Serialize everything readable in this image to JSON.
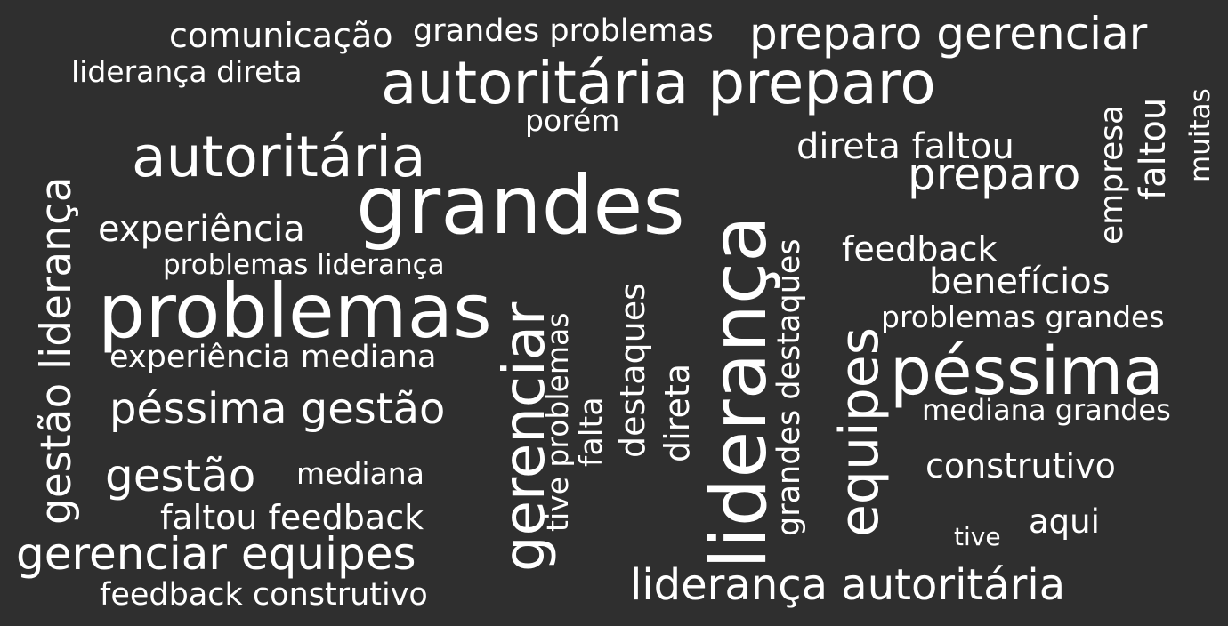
{
  "style": {
    "background": "#2f2f2f",
    "text_color": "#ffffff"
  },
  "words": [
    {
      "text": "comunicação",
      "rotated": false
    },
    {
      "text": "grandes problemas",
      "rotated": false
    },
    {
      "text": "preparo gerenciar",
      "rotated": false
    },
    {
      "text": "liderança direta",
      "rotated": false
    },
    {
      "text": "autoritária preparo",
      "rotated": false
    },
    {
      "text": "porém",
      "rotated": false
    },
    {
      "text": "autoritária",
      "rotated": false
    },
    {
      "text": "grandes",
      "rotated": false
    },
    {
      "text": "direta faltou",
      "rotated": false
    },
    {
      "text": "preparo",
      "rotated": false
    },
    {
      "text": "experiência",
      "rotated": false
    },
    {
      "text": "problemas liderança",
      "rotated": false
    },
    {
      "text": "feedback",
      "rotated": false
    },
    {
      "text": "benefícios",
      "rotated": false
    },
    {
      "text": "problemas",
      "rotated": false
    },
    {
      "text": "problemas grandes",
      "rotated": false
    },
    {
      "text": "experiência mediana",
      "rotated": false
    },
    {
      "text": "péssima",
      "rotated": false
    },
    {
      "text": "péssima gestão",
      "rotated": false
    },
    {
      "text": "mediana grandes",
      "rotated": false
    },
    {
      "text": "gestão",
      "rotated": false
    },
    {
      "text": "mediana",
      "rotated": false
    },
    {
      "text": "construtivo",
      "rotated": false
    },
    {
      "text": "faltou feedback",
      "rotated": false
    },
    {
      "text": "aqui",
      "rotated": false
    },
    {
      "text": "tive",
      "rotated": false
    },
    {
      "text": "gerenciar equipes",
      "rotated": false
    },
    {
      "text": "feedback construtivo",
      "rotated": false
    },
    {
      "text": "liderança autoritária",
      "rotated": false
    },
    {
      "text": "gestão liderança",
      "rotated": true
    },
    {
      "text": "gerenciar",
      "rotated": true
    },
    {
      "text": "tive problemas",
      "rotated": true
    },
    {
      "text": "falta",
      "rotated": true
    },
    {
      "text": "destaques",
      "rotated": true
    },
    {
      "text": "direta",
      "rotated": true
    },
    {
      "text": "liderança",
      "rotated": true
    },
    {
      "text": "grandes destaques",
      "rotated": true
    },
    {
      "text": "equipes",
      "rotated": true
    },
    {
      "text": "empresa",
      "rotated": true
    },
    {
      "text": "faltou",
      "rotated": true
    },
    {
      "text": "muitas",
      "rotated": true
    }
  ]
}
